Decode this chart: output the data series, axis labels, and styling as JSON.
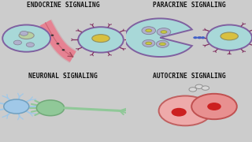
{
  "title_endocrine": "ENDOCRINE SIGNALING",
  "title_paracrine": "PARACRINE SIGNALING",
  "title_neuronal": "NEURONAL SIGNALING",
  "title_autocrine": "AUTOCRINE SIGNALING",
  "cell_color_light": "#a8d8d8",
  "cell_purple_outline": "#8060a0",
  "nucleus_yellow": "#d8c040",
  "blood_vessel_color": "#e88090",
  "neuron_color1": "#a0c8e8",
  "neuron_color2": "#90c898",
  "receptor_color": "#803060",
  "font_size": 5.8,
  "text_color": "#111111",
  "top_bg": "#cccccc",
  "bot_bg": "#efefef"
}
